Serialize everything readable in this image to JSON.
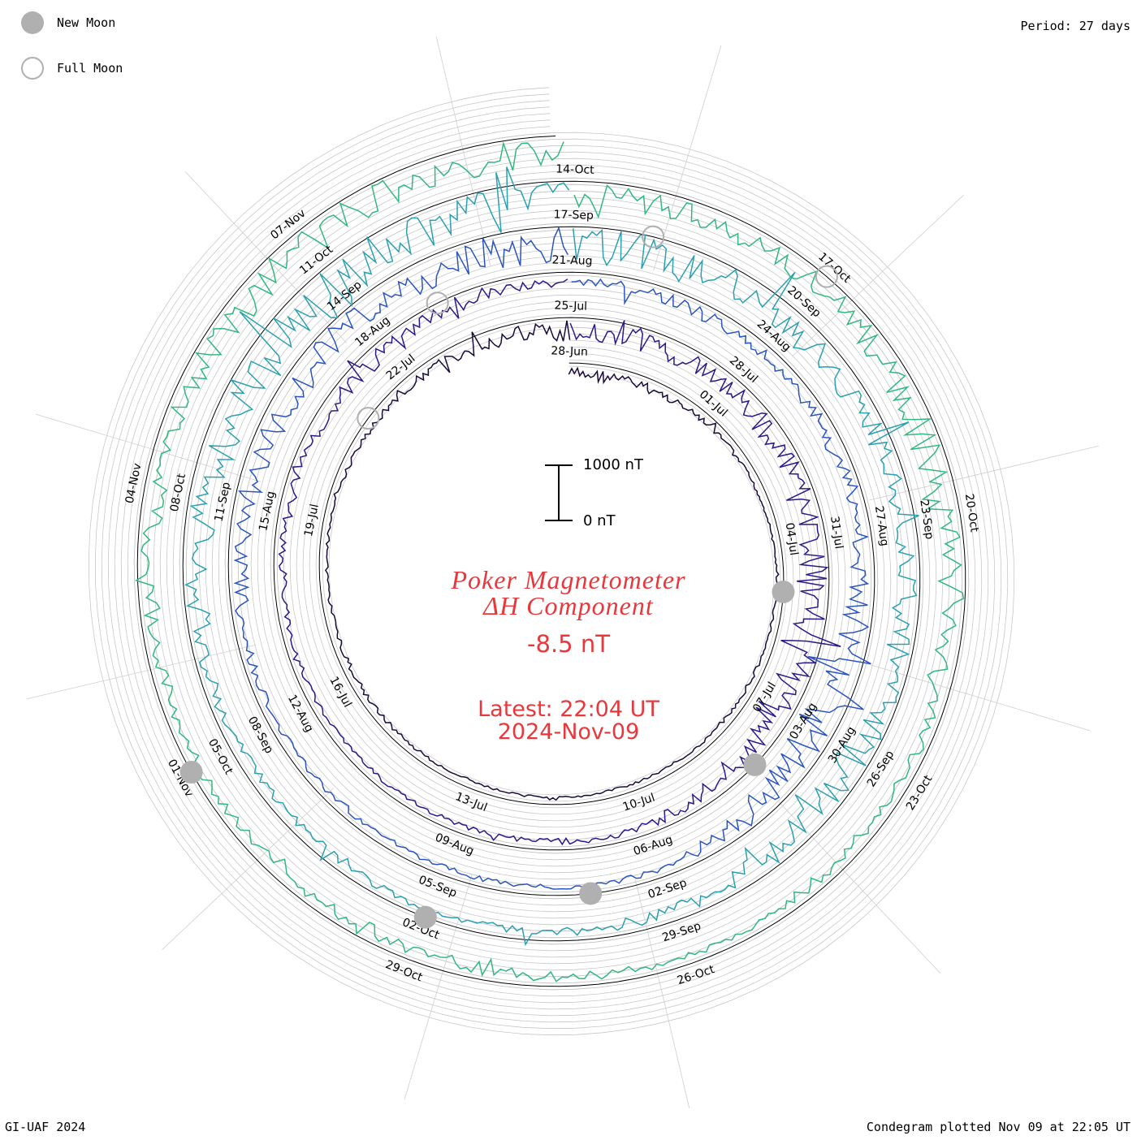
{
  "period_label": "Period: 27 days",
  "credit": "GI-UAF 2024",
  "plotted_label": "Condegram plotted Nov 09 at 22:05 UT",
  "legend": {
    "new_moon": "New Moon",
    "full_moon": "Full Moon"
  },
  "title": {
    "line1": "Poker Magnetometer",
    "line2": "ΔH Component"
  },
  "current_value": "-8.5 nT",
  "latest": "Latest: 22:04 UT",
  "latest_date": "2024-Nov-09",
  "scale": {
    "top": "1000 nT",
    "bottom": "0 nT"
  },
  "chart_data": {
    "type": "line",
    "subtype": "spiral condegram",
    "period_days": 27,
    "start_date": "28-Jun",
    "end_date": "2024-Nov-09",
    "date_labels": [
      "28-Jun",
      "01-Jul",
      "04-Jul",
      "07-Jul",
      "10-Jul",
      "13-Jul",
      "16-Jul",
      "19-Jul",
      "22-Jul",
      "25-Jul",
      "28-Jul",
      "31-Jul",
      "03-Aug",
      "06-Aug",
      "09-Aug",
      "12-Aug",
      "15-Aug",
      "18-Aug",
      "21-Aug",
      "24-Aug",
      "27-Aug",
      "30-Aug",
      "02-Sep",
      "05-Sep",
      "08-Sep",
      "11-Sep",
      "14-Sep",
      "17-Sep",
      "20-Sep",
      "23-Sep",
      "26-Sep",
      "29-Sep",
      "02-Oct",
      "05-Oct",
      "08-Oct",
      "11-Oct",
      "14-Oct",
      "17-Oct",
      "20-Oct",
      "23-Oct",
      "26-Oct",
      "29-Oct",
      "01-Nov",
      "04-Nov",
      "07-Nov"
    ],
    "new_moons": [
      "05-Jul",
      "04-Aug",
      "03-Sep",
      "02-Oct",
      "01-Nov"
    ],
    "full_moons": [
      "21-Jul",
      "19-Aug",
      "18-Sep",
      "17-Oct"
    ],
    "scale_nT": [
      0,
      1000
    ],
    "series_colors": [
      "#1a0a3a",
      "#2a1a8a",
      "#2a55c0",
      "#2aa0b0",
      "#30b880",
      "#80c030",
      "#b8b020",
      "#c08010",
      "#c04010",
      "#b01010"
    ],
    "daily_dH_activity": [
      {
        "date": "28-Jun",
        "level": 250
      },
      {
        "date": "01-Jul",
        "level": 90
      },
      {
        "date": "04-Jul",
        "level": 20
      },
      {
        "date": "07-Jul",
        "level": 60
      },
      {
        "date": "10-Jul",
        "level": 40
      },
      {
        "date": "13-Jul",
        "level": 30
      },
      {
        "date": "16-Jul",
        "level": 80
      },
      {
        "date": "19-Jul",
        "level": 40
      },
      {
        "date": "22-Jul",
        "level": 120
      },
      {
        "date": "25-Jul",
        "level": 350
      },
      {
        "date": "28-Jul",
        "level": 300
      },
      {
        "date": "31-Jul",
        "level": 400
      },
      {
        "date": "03-Aug",
        "level": 600
      },
      {
        "date": "06-Aug",
        "level": 120
      },
      {
        "date": "09-Aug",
        "level": 80
      },
      {
        "date": "12-Aug",
        "level": 60
      },
      {
        "date": "15-Aug",
        "level": 150
      },
      {
        "date": "18-Aug",
        "level": 250
      },
      {
        "date": "21-Aug",
        "level": 150
      },
      {
        "date": "24-Aug",
        "level": 200
      },
      {
        "date": "27-Aug",
        "level": 250
      },
      {
        "date": "30-Aug",
        "level": 700
      },
      {
        "date": "02-Sep",
        "level": 100
      },
      {
        "date": "05-Sep",
        "level": 80
      },
      {
        "date": "08-Sep",
        "level": 100
      },
      {
        "date": "11-Sep",
        "level": 400
      },
      {
        "date": "14-Sep",
        "level": 450
      },
      {
        "date": "17-Sep",
        "level": 650
      },
      {
        "date": "20-Sep",
        "level": 500
      },
      {
        "date": "23-Sep",
        "level": 300
      },
      {
        "date": "26-Sep",
        "level": 550
      },
      {
        "date": "29-Sep",
        "level": 200
      },
      {
        "date": "02-Oct",
        "level": 120
      },
      {
        "date": "05-Oct",
        "level": 150
      },
      {
        "date": "08-Oct",
        "level": 500
      },
      {
        "date": "11-Oct",
        "level": 800
      },
      {
        "date": "14-Oct",
        "level": 400
      },
      {
        "date": "17-Oct",
        "level": 350
      },
      {
        "date": "20-Oct",
        "level": 550
      },
      {
        "date": "23-Oct",
        "level": 150
      },
      {
        "date": "26-Oct",
        "level": 100
      },
      {
        "date": "29-Oct",
        "level": 250
      },
      {
        "date": "01-Nov",
        "level": 150
      },
      {
        "date": "04-Nov",
        "level": 350
      },
      {
        "date": "07-Nov",
        "level": 500
      }
    ]
  }
}
